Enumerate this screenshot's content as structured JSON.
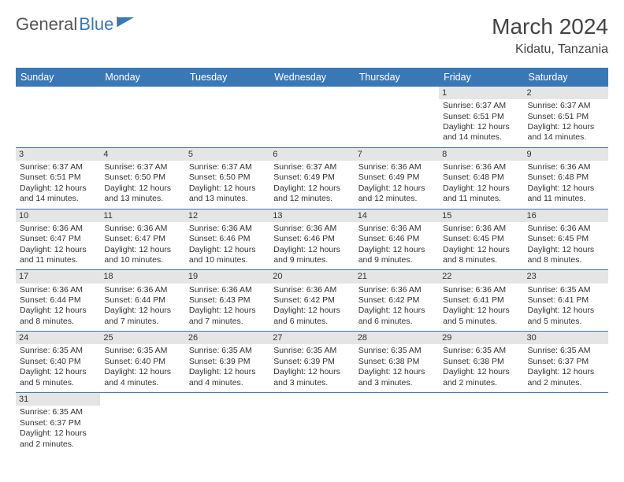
{
  "logo": {
    "general": "General",
    "blue": "Blue"
  },
  "header": {
    "month": "March 2024",
    "location": "Kidatu, Tanzania"
  },
  "colors": {
    "header_bg": "#3a78b5",
    "header_text": "#ffffff",
    "daynum_bg": "#e5e5e5",
    "border": "#3a78b5",
    "text": "#333333"
  },
  "daynames": [
    "Sunday",
    "Monday",
    "Tuesday",
    "Wednesday",
    "Thursday",
    "Friday",
    "Saturday"
  ],
  "weeks": [
    [
      null,
      null,
      null,
      null,
      null,
      {
        "n": "1",
        "sunrise": "Sunrise: 6:37 AM",
        "sunset": "Sunset: 6:51 PM",
        "daylight": "Daylight: 12 hours and 14 minutes."
      },
      {
        "n": "2",
        "sunrise": "Sunrise: 6:37 AM",
        "sunset": "Sunset: 6:51 PM",
        "daylight": "Daylight: 12 hours and 14 minutes."
      }
    ],
    [
      {
        "n": "3",
        "sunrise": "Sunrise: 6:37 AM",
        "sunset": "Sunset: 6:51 PM",
        "daylight": "Daylight: 12 hours and 14 minutes."
      },
      {
        "n": "4",
        "sunrise": "Sunrise: 6:37 AM",
        "sunset": "Sunset: 6:50 PM",
        "daylight": "Daylight: 12 hours and 13 minutes."
      },
      {
        "n": "5",
        "sunrise": "Sunrise: 6:37 AM",
        "sunset": "Sunset: 6:50 PM",
        "daylight": "Daylight: 12 hours and 13 minutes."
      },
      {
        "n": "6",
        "sunrise": "Sunrise: 6:37 AM",
        "sunset": "Sunset: 6:49 PM",
        "daylight": "Daylight: 12 hours and 12 minutes."
      },
      {
        "n": "7",
        "sunrise": "Sunrise: 6:36 AM",
        "sunset": "Sunset: 6:49 PM",
        "daylight": "Daylight: 12 hours and 12 minutes."
      },
      {
        "n": "8",
        "sunrise": "Sunrise: 6:36 AM",
        "sunset": "Sunset: 6:48 PM",
        "daylight": "Daylight: 12 hours and 11 minutes."
      },
      {
        "n": "9",
        "sunrise": "Sunrise: 6:36 AM",
        "sunset": "Sunset: 6:48 PM",
        "daylight": "Daylight: 12 hours and 11 minutes."
      }
    ],
    [
      {
        "n": "10",
        "sunrise": "Sunrise: 6:36 AM",
        "sunset": "Sunset: 6:47 PM",
        "daylight": "Daylight: 12 hours and 11 minutes."
      },
      {
        "n": "11",
        "sunrise": "Sunrise: 6:36 AM",
        "sunset": "Sunset: 6:47 PM",
        "daylight": "Daylight: 12 hours and 10 minutes."
      },
      {
        "n": "12",
        "sunrise": "Sunrise: 6:36 AM",
        "sunset": "Sunset: 6:46 PM",
        "daylight": "Daylight: 12 hours and 10 minutes."
      },
      {
        "n": "13",
        "sunrise": "Sunrise: 6:36 AM",
        "sunset": "Sunset: 6:46 PM",
        "daylight": "Daylight: 12 hours and 9 minutes."
      },
      {
        "n": "14",
        "sunrise": "Sunrise: 6:36 AM",
        "sunset": "Sunset: 6:46 PM",
        "daylight": "Daylight: 12 hours and 9 minutes."
      },
      {
        "n": "15",
        "sunrise": "Sunrise: 6:36 AM",
        "sunset": "Sunset: 6:45 PM",
        "daylight": "Daylight: 12 hours and 8 minutes."
      },
      {
        "n": "16",
        "sunrise": "Sunrise: 6:36 AM",
        "sunset": "Sunset: 6:45 PM",
        "daylight": "Daylight: 12 hours and 8 minutes."
      }
    ],
    [
      {
        "n": "17",
        "sunrise": "Sunrise: 6:36 AM",
        "sunset": "Sunset: 6:44 PM",
        "daylight": "Daylight: 12 hours and 8 minutes."
      },
      {
        "n": "18",
        "sunrise": "Sunrise: 6:36 AM",
        "sunset": "Sunset: 6:44 PM",
        "daylight": "Daylight: 12 hours and 7 minutes."
      },
      {
        "n": "19",
        "sunrise": "Sunrise: 6:36 AM",
        "sunset": "Sunset: 6:43 PM",
        "daylight": "Daylight: 12 hours and 7 minutes."
      },
      {
        "n": "20",
        "sunrise": "Sunrise: 6:36 AM",
        "sunset": "Sunset: 6:42 PM",
        "daylight": "Daylight: 12 hours and 6 minutes."
      },
      {
        "n": "21",
        "sunrise": "Sunrise: 6:36 AM",
        "sunset": "Sunset: 6:42 PM",
        "daylight": "Daylight: 12 hours and 6 minutes."
      },
      {
        "n": "22",
        "sunrise": "Sunrise: 6:36 AM",
        "sunset": "Sunset: 6:41 PM",
        "daylight": "Daylight: 12 hours and 5 minutes."
      },
      {
        "n": "23",
        "sunrise": "Sunrise: 6:35 AM",
        "sunset": "Sunset: 6:41 PM",
        "daylight": "Daylight: 12 hours and 5 minutes."
      }
    ],
    [
      {
        "n": "24",
        "sunrise": "Sunrise: 6:35 AM",
        "sunset": "Sunset: 6:40 PM",
        "daylight": "Daylight: 12 hours and 5 minutes."
      },
      {
        "n": "25",
        "sunrise": "Sunrise: 6:35 AM",
        "sunset": "Sunset: 6:40 PM",
        "daylight": "Daylight: 12 hours and 4 minutes."
      },
      {
        "n": "26",
        "sunrise": "Sunrise: 6:35 AM",
        "sunset": "Sunset: 6:39 PM",
        "daylight": "Daylight: 12 hours and 4 minutes."
      },
      {
        "n": "27",
        "sunrise": "Sunrise: 6:35 AM",
        "sunset": "Sunset: 6:39 PM",
        "daylight": "Daylight: 12 hours and 3 minutes."
      },
      {
        "n": "28",
        "sunrise": "Sunrise: 6:35 AM",
        "sunset": "Sunset: 6:38 PM",
        "daylight": "Daylight: 12 hours and 3 minutes."
      },
      {
        "n": "29",
        "sunrise": "Sunrise: 6:35 AM",
        "sunset": "Sunset: 6:38 PM",
        "daylight": "Daylight: 12 hours and 2 minutes."
      },
      {
        "n": "30",
        "sunrise": "Sunrise: 6:35 AM",
        "sunset": "Sunset: 6:37 PM",
        "daylight": "Daylight: 12 hours and 2 minutes."
      }
    ],
    [
      {
        "n": "31",
        "sunrise": "Sunrise: 6:35 AM",
        "sunset": "Sunset: 6:37 PM",
        "daylight": "Daylight: 12 hours and 2 minutes."
      },
      null,
      null,
      null,
      null,
      null,
      null
    ]
  ]
}
